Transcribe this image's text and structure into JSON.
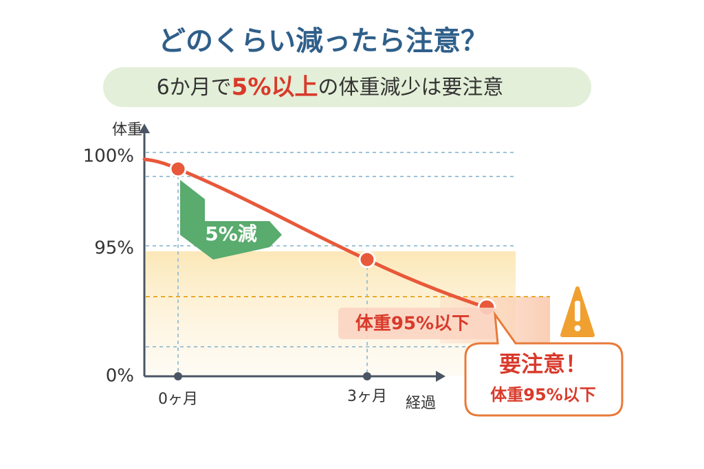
{
  "title": "どのくらい減ったら注意？",
  "subtitle": {
    "prefix": "6か月で",
    "highlight": "5%以上",
    "suffix": "の体重減少は要注意"
  },
  "y_axis": {
    "label": "体重",
    "ticks": [
      "100%",
      "95%",
      "0%"
    ]
  },
  "x_axis": {
    "label": "経過",
    "ticks": [
      "0ヶ月",
      "3ヶ月"
    ]
  },
  "drop_label": "5%減",
  "zone_label": "体重95%以下",
  "callout": {
    "title": "要注意！",
    "text": "体重95%以下"
  }
}
